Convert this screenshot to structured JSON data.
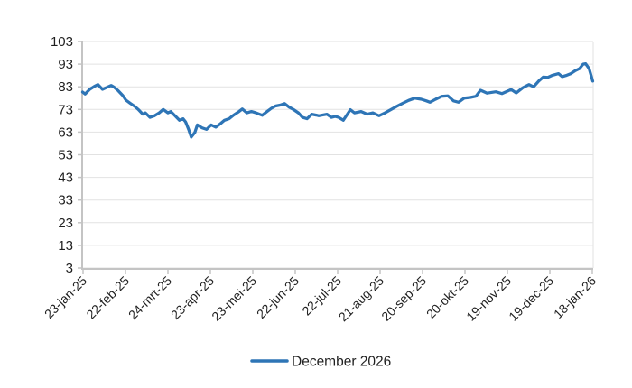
{
  "chart_data": {
    "type": "line",
    "title": "",
    "legend": {
      "position": "bottom",
      "label": "December 2026"
    },
    "y_axis": {
      "min": 3,
      "max": 103,
      "ticks": [
        3,
        13,
        23,
        33,
        43,
        53,
        63,
        73,
        83,
        93,
        103
      ],
      "grid": true
    },
    "x_axis": {
      "tick_labels": [
        "23-jan-25",
        "22-feb-25",
        "24-mrt-25",
        "23-apr-25",
        "23-mei-25",
        "22-jun-25",
        "22-jul-25",
        "21-aug-25",
        "20-sep-25",
        "20-okt-25",
        "19-nov-25",
        "19-dec-25",
        "18-jan-26"
      ],
      "label_rotation_deg": -45
    },
    "colors": {
      "accent": "#2E75B6",
      "gridline": "#E2E2E2",
      "axis": "#C4C4C4",
      "text": "#1F1F1F",
      "background": "#FFFFFF"
    },
    "series": [
      {
        "name": "December 2026",
        "color": "#2E75B6",
        "points": [
          [
            0.0,
            80.7
          ],
          [
            0.005,
            79.8
          ],
          [
            0.014,
            81.9
          ],
          [
            0.023,
            83.2
          ],
          [
            0.03,
            84.0
          ],
          [
            0.039,
            81.9
          ],
          [
            0.048,
            82.8
          ],
          [
            0.056,
            83.6
          ],
          [
            0.062,
            82.8
          ],
          [
            0.07,
            81.2
          ],
          [
            0.079,
            79.1
          ],
          [
            0.085,
            77.1
          ],
          [
            0.093,
            75.8
          ],
          [
            0.102,
            74.4
          ],
          [
            0.109,
            73.0
          ],
          [
            0.118,
            70.9
          ],
          [
            0.123,
            71.5
          ],
          [
            0.132,
            69.5
          ],
          [
            0.141,
            70.2
          ],
          [
            0.15,
            71.5
          ],
          [
            0.158,
            73.0
          ],
          [
            0.167,
            71.5
          ],
          [
            0.173,
            72.1
          ],
          [
            0.181,
            70.2
          ],
          [
            0.19,
            68.2
          ],
          [
            0.197,
            68.9
          ],
          [
            0.202,
            67.5
          ],
          [
            0.208,
            64.1
          ],
          [
            0.213,
            60.8
          ],
          [
            0.22,
            62.8
          ],
          [
            0.225,
            66.2
          ],
          [
            0.234,
            64.9
          ],
          [
            0.243,
            64.2
          ],
          [
            0.252,
            66.2
          ],
          [
            0.261,
            65.2
          ],
          [
            0.269,
            66.5
          ],
          [
            0.278,
            68.2
          ],
          [
            0.287,
            68.9
          ],
          [
            0.296,
            70.5
          ],
          [
            0.305,
            71.8
          ],
          [
            0.313,
            73.2
          ],
          [
            0.322,
            71.5
          ],
          [
            0.331,
            72.1
          ],
          [
            0.34,
            71.5
          ],
          [
            0.352,
            70.4
          ],
          [
            0.361,
            72.0
          ],
          [
            0.37,
            73.5
          ],
          [
            0.378,
            74.5
          ],
          [
            0.387,
            74.9
          ],
          [
            0.396,
            75.6
          ],
          [
            0.405,
            74.0
          ],
          [
            0.414,
            72.9
          ],
          [
            0.423,
            71.5
          ],
          [
            0.431,
            69.5
          ],
          [
            0.44,
            68.9
          ],
          [
            0.449,
            70.9
          ],
          [
            0.458,
            70.5
          ],
          [
            0.463,
            70.2
          ],
          [
            0.472,
            70.6
          ],
          [
            0.479,
            70.9
          ],
          [
            0.488,
            69.5
          ],
          [
            0.495,
            69.9
          ],
          [
            0.502,
            69.5
          ],
          [
            0.511,
            68.2
          ],
          [
            0.519,
            70.9
          ],
          [
            0.525,
            72.9
          ],
          [
            0.533,
            71.5
          ],
          [
            0.546,
            72.1
          ],
          [
            0.558,
            70.9
          ],
          [
            0.569,
            71.5
          ],
          [
            0.581,
            70.2
          ],
          [
            0.593,
            71.5
          ],
          [
            0.604,
            72.9
          ],
          [
            0.616,
            74.4
          ],
          [
            0.628,
            75.8
          ],
          [
            0.639,
            77.0
          ],
          [
            0.651,
            78.0
          ],
          [
            0.664,
            77.5
          ],
          [
            0.674,
            76.8
          ],
          [
            0.681,
            76.2
          ],
          [
            0.692,
            77.5
          ],
          [
            0.704,
            78.8
          ],
          [
            0.716,
            79.0
          ],
          [
            0.727,
            76.8
          ],
          [
            0.737,
            76.2
          ],
          [
            0.748,
            78.0
          ],
          [
            0.76,
            78.3
          ],
          [
            0.771,
            78.8
          ],
          [
            0.78,
            81.5
          ],
          [
            0.793,
            80.2
          ],
          [
            0.81,
            80.8
          ],
          [
            0.822,
            80.0
          ],
          [
            0.832,
            81.0
          ],
          [
            0.84,
            81.8
          ],
          [
            0.85,
            80.3
          ],
          [
            0.863,
            82.6
          ],
          [
            0.875,
            84.0
          ],
          [
            0.884,
            83.0
          ],
          [
            0.894,
            85.5
          ],
          [
            0.903,
            87.3
          ],
          [
            0.912,
            87.2
          ],
          [
            0.921,
            88.1
          ],
          [
            0.933,
            88.8
          ],
          [
            0.94,
            87.5
          ],
          [
            0.949,
            88.1
          ],
          [
            0.957,
            88.8
          ],
          [
            0.965,
            90.0
          ],
          [
            0.974,
            91.0
          ],
          [
            0.981,
            93.0
          ],
          [
            0.986,
            93.2
          ],
          [
            0.993,
            91.0
          ],
          [
            1.0,
            85.5
          ]
        ]
      }
    ]
  }
}
